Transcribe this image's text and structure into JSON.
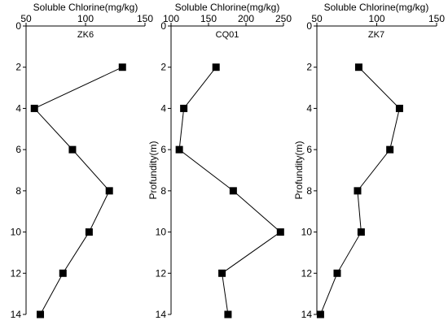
{
  "chart_data": [
    {
      "type": "line",
      "title": "ZK6",
      "xlabel": "Soluble Chlorine(mg/kg)",
      "ylabel": "",
      "xlim": [
        50,
        150
      ],
      "xticks": [
        50,
        100,
        150
      ],
      "ylim": [
        0,
        14
      ],
      "yticks": [
        0,
        2,
        4,
        6,
        8,
        10,
        12,
        14
      ],
      "y_inverted": true,
      "marker": "square",
      "points": [
        {
          "y": 2,
          "x": 131
        },
        {
          "y": 4,
          "x": 57
        },
        {
          "y": 6,
          "x": 89
        },
        {
          "y": 8,
          "x": 120
        },
        {
          "y": 10,
          "x": 103
        },
        {
          "y": 12,
          "x": 81
        },
        {
          "y": 14,
          "x": 62
        }
      ]
    },
    {
      "type": "line",
      "title": "CQ01",
      "xlabel": "Soluble Chlorine(mg/kg)",
      "ylabel": "Profundity(m)",
      "xlim": [
        100,
        250
      ],
      "xticks": [
        100,
        150,
        200,
        250
      ],
      "ylim": [
        0,
        14
      ],
      "yticks": [
        0,
        2,
        4,
        6,
        8,
        10,
        12,
        14
      ],
      "y_inverted": true,
      "marker": "square",
      "points": [
        {
          "y": 2,
          "x": 160
        },
        {
          "y": 4,
          "x": 117
        },
        {
          "y": 6,
          "x": 111
        },
        {
          "y": 8,
          "x": 183
        },
        {
          "y": 10,
          "x": 246
        },
        {
          "y": 12,
          "x": 168
        },
        {
          "y": 14,
          "x": 176
        }
      ]
    },
    {
      "type": "line",
      "title": "ZK7",
      "xlabel": "Soluble Chlorine(mg/kg)",
      "ylabel": "Profundity(m)",
      "xlim": [
        50,
        150
      ],
      "xticks": [
        50,
        100,
        150
      ],
      "ylim": [
        0,
        14
      ],
      "yticks": [
        0,
        2,
        4,
        6,
        8,
        10,
        12,
        14
      ],
      "y_inverted": true,
      "marker": "square",
      "points": [
        {
          "y": 2,
          "x": 85
        },
        {
          "y": 4,
          "x": 119
        },
        {
          "y": 6,
          "x": 111
        },
        {
          "y": 8,
          "x": 84
        },
        {
          "y": 10,
          "x": 87
        },
        {
          "y": 12,
          "x": 67
        },
        {
          "y": 14,
          "x": 53
        }
      ]
    }
  ],
  "colors": {
    "axis": "#000000",
    "line": "#000000",
    "marker": "#000000"
  }
}
